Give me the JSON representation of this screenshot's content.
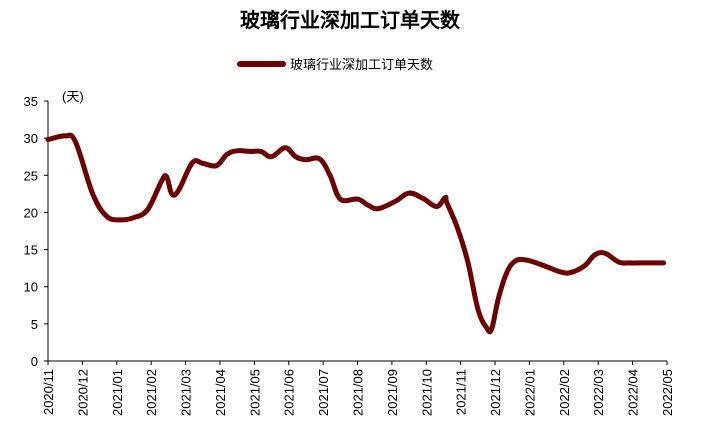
{
  "chart_data": {
    "type": "line",
    "title": "玻璃行业深加工订单天数",
    "unit_label": "(天)",
    "ylim": [
      0,
      35
    ],
    "yticks": [
      0,
      5,
      10,
      15,
      20,
      25,
      30,
      35
    ],
    "grid": false,
    "legend_position": "top-center",
    "colors": {
      "series": "#6B0000"
    },
    "categories": [
      "2020/11",
      "2020/12",
      "2021/01",
      "2021/02",
      "2021/03",
      "2021/04",
      "2021/05",
      "2021/06",
      "2021/07",
      "2021/08",
      "2021/09",
      "2021/10",
      "2021/11",
      "2021/12",
      "2022/01",
      "2022/02",
      "2022/03",
      "2022/04",
      "2022/05"
    ],
    "series": [
      {
        "name": "玻璃行业深加工订单天数",
        "x": [
          0,
          0.5,
          0.8,
          1.3,
          1.7,
          2.1,
          2.5,
          2.9,
          3.3,
          3.45,
          3.6,
          3.8,
          4.2,
          4.5,
          4.9,
          5.2,
          5.5,
          5.9,
          6.2,
          6.5,
          6.9,
          7.2,
          7.5,
          7.9,
          8.2,
          8.5,
          9.0,
          9.3,
          9.6,
          10.1,
          10.5,
          10.9,
          11.3,
          11.55,
          11.6,
          11.9,
          12.2,
          12.5,
          12.75,
          12.9,
          13.1,
          13.35,
          13.6,
          13.9,
          14.2,
          14.5,
          14.9,
          15.2,
          15.6,
          15.9,
          16.2,
          16.6,
          16.9,
          17.2,
          17.5,
          17.9
        ],
        "values": [
          29.8,
          30.3,
          29.5,
          22.5,
          19.5,
          19.0,
          19.3,
          20.4,
          24.2,
          24.8,
          22.5,
          23.0,
          26.7,
          26.6,
          26.3,
          27.8,
          28.3,
          28.2,
          28.2,
          27.5,
          28.7,
          27.5,
          27.1,
          27.2,
          25.0,
          21.8,
          21.8,
          21.0,
          20.5,
          21.5,
          22.6,
          21.9,
          20.8,
          22.0,
          21.3,
          18.0,
          13.5,
          7.0,
          4.5,
          4.3,
          8.5,
          12.0,
          13.5,
          13.6,
          13.2,
          12.7,
          12.0,
          11.9,
          12.8,
          14.3,
          14.5,
          13.3,
          13.2,
          13.2,
          13.2,
          13.2
        ]
      }
    ]
  }
}
